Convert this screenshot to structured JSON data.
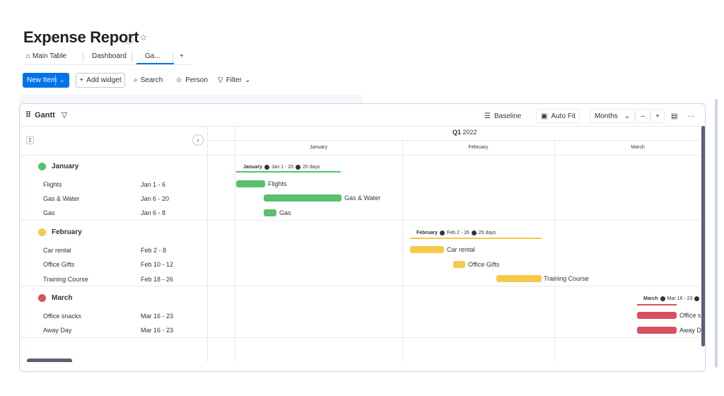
{
  "header": {
    "title": "Expense Report",
    "info_icon": "info-icon",
    "star_icon": "star-icon"
  },
  "tabs": [
    {
      "label": "Main Table",
      "icon": "home-icon"
    },
    {
      "label": "Dashboard"
    },
    {
      "label": "Ga..."
    },
    {
      "label": "+"
    }
  ],
  "toolbar": {
    "new_item": "New Item",
    "add_widget": "Add widget",
    "search": "Search",
    "person": "Person",
    "filter": "Filter"
  },
  "gantt": {
    "title": "Gantt",
    "baseline": "Baseline",
    "autofit": "Auto Fit",
    "zoom": "Months",
    "minus": "–",
    "plus": "+",
    "more": "···",
    "quarter": "Q1",
    "year": "2022",
    "months": [
      "January",
      "February",
      "March"
    ]
  },
  "groups": [
    {
      "name": "January",
      "color": "#57c16e",
      "summary_range": "Jan 1 - 20",
      "summary_days": "20 days",
      "items": [
        {
          "name": "Flights",
          "date": "Jan 1 - 6"
        },
        {
          "name": "Gas & Water",
          "date": "Jan 6 - 20"
        },
        {
          "name": "Gas",
          "date": "Jan 6 - 8"
        }
      ]
    },
    {
      "name": "February",
      "color": "#f5c94a",
      "summary_range": "Feb 2 - 26",
      "summary_days": "25 days",
      "items": [
        {
          "name": "Car rental",
          "date": "Feb 2 - 8"
        },
        {
          "name": "Office Gifts",
          "date": "Feb 10 - 12"
        },
        {
          "name": "Training Course",
          "date": "Feb 18 - 26"
        }
      ]
    },
    {
      "name": "March",
      "color": "#d8505f",
      "summary_range": "Mar 16 - 23",
      "summary_days": "",
      "items": [
        {
          "name": "Office snacks",
          "date": "Mar 16 - 23",
          "bar_label": "Office s"
        },
        {
          "name": "Away Day",
          "date": "Mar 16 - 23",
          "bar_label": "Away D"
        }
      ]
    }
  ]
}
